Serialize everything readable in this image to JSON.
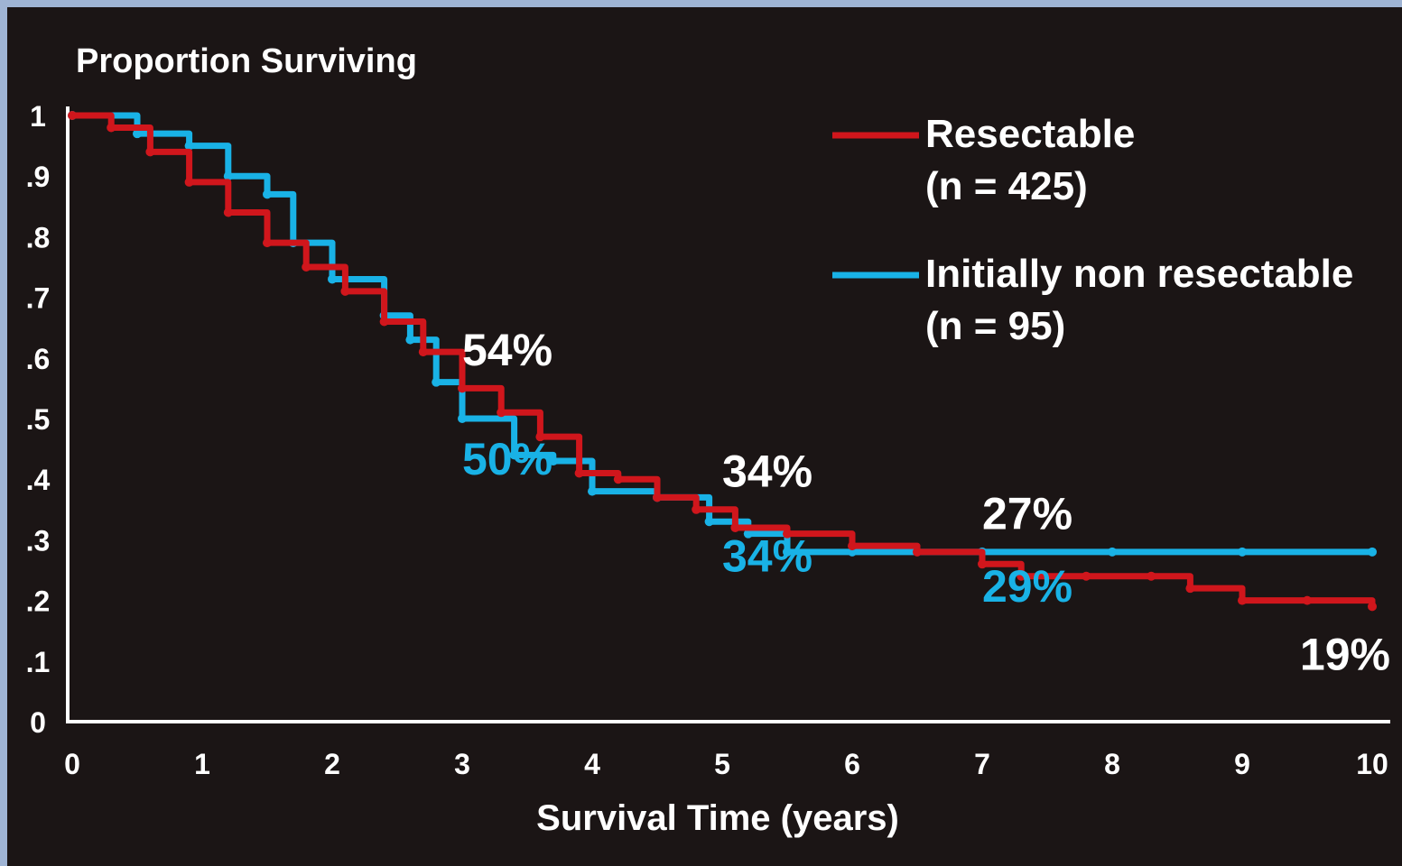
{
  "chart_data": {
    "type": "line",
    "title": "Proportion Surviving",
    "x_label": "Survival Time (years)",
    "step": true,
    "xlim": [
      0,
      10
    ],
    "xticks": [
      0,
      1,
      2,
      3,
      4,
      5,
      6,
      7,
      8,
      9,
      10
    ],
    "ylim": [
      0,
      1
    ],
    "yticks": [
      0,
      {
        "value": 0.1,
        "label": ".1"
      },
      {
        "value": 0.2,
        "label": ".2"
      },
      {
        "value": 0.3,
        "label": ".3"
      },
      {
        "value": 0.4,
        "label": ".4"
      },
      {
        "value": 0.5,
        "label": ".5"
      },
      {
        "value": 0.6,
        "label": ".6"
      },
      {
        "value": 0.7,
        "label": ".7"
      },
      {
        "value": 0.8,
        "label": ".8"
      },
      {
        "value": 0.9,
        "label": ".9"
      },
      1
    ],
    "series": [
      {
        "name": "Resectable\n(n = 425)",
        "color": "#d0161c",
        "x": [
          0,
          0.3,
          0.6,
          0.9,
          1.2,
          1.5,
          1.8,
          2.1,
          2.4,
          2.7,
          3.0,
          3.3,
          3.6,
          3.9,
          4.2,
          4.5,
          4.8,
          5.1,
          5.5,
          6.0,
          6.5,
          7.0,
          7.3,
          7.8,
          8.3,
          8.6,
          9.0,
          9.5,
          10
        ],
        "values": [
          1.0,
          0.98,
          0.94,
          0.89,
          0.84,
          0.79,
          0.75,
          0.71,
          0.66,
          0.61,
          0.55,
          0.51,
          0.47,
          0.41,
          0.4,
          0.37,
          0.35,
          0.32,
          0.31,
          0.29,
          0.28,
          0.26,
          0.24,
          0.24,
          0.24,
          0.22,
          0.2,
          0.2,
          0.19
        ]
      },
      {
        "name": "Initially non resectable\n(n = 95)",
        "color": "#19b2e6",
        "x": [
          0,
          0.5,
          0.9,
          1.2,
          1.5,
          1.7,
          2.0,
          2.4,
          2.6,
          2.8,
          3.0,
          3.4,
          3.7,
          4.0,
          4.5,
          4.9,
          5.2,
          5.5,
          6.0,
          7.0,
          8.0,
          9.0,
          10
        ],
        "values": [
          1.0,
          0.97,
          0.95,
          0.9,
          0.87,
          0.79,
          0.73,
          0.67,
          0.63,
          0.56,
          0.5,
          0.44,
          0.43,
          0.38,
          0.37,
          0.33,
          0.31,
          0.28,
          0.28,
          0.28,
          0.28,
          0.28,
          0.28
        ]
      }
    ],
    "annotations": [
      {
        "text": "54%",
        "x": 3,
        "y": 0.54,
        "color": "#ffffff"
      },
      {
        "text": "50%",
        "x": 3,
        "y": 0.5,
        "color": "#19b2e6"
      },
      {
        "text": "34%",
        "x": 5,
        "y": 0.34,
        "color": "#ffffff"
      },
      {
        "text": "34%",
        "x": 5,
        "y": 0.34,
        "color": "#19b2e6"
      },
      {
        "text": "27%",
        "x": 7,
        "y": 0.27,
        "color": "#ffffff"
      },
      {
        "text": "29%",
        "x": 7,
        "y": 0.29,
        "color": "#19b2e6"
      },
      {
        "text": "19%",
        "x": 10,
        "y": 0.19,
        "color": "#ffffff"
      }
    ]
  }
}
